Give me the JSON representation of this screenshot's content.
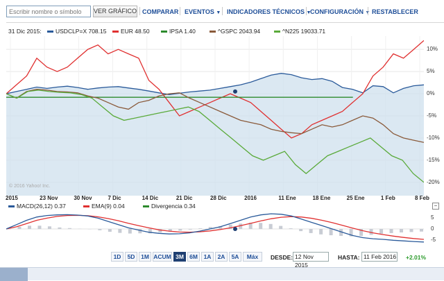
{
  "toolbar": {
    "search_placeholder": "Escribir nombre o símbolo",
    "ver_button": "VER GRÁFICO",
    "menu": [
      {
        "label": "COMPARAR",
        "caret": ""
      },
      {
        "label": "EVENTOS",
        "caret": "▼"
      },
      {
        "label": "INDICADORES TÉCNICOS",
        "caret": "▼"
      },
      {
        "label": "CONFIGURACIÓN",
        "caret": "▼"
      },
      {
        "label": "RESTABLECER",
        "caret": ""
      }
    ]
  },
  "legend": {
    "date": "31 Dic 2015:",
    "series": [
      {
        "label": "USDCLP=X 708.15",
        "color": "#2a5a9a"
      },
      {
        "label": "EUR 48.50",
        "color": "#e03030"
      },
      {
        "label": "IPSA 1.40",
        "color": "#2c8a2c"
      },
      {
        "label": "^GSPC 2043.94",
        "color": "#8a5a3a"
      },
      {
        "label": "^N225 19033.71",
        "color": "#5aaa3a"
      }
    ]
  },
  "chart_data": {
    "type": "line",
    "x_ticks": [
      "2015",
      "23 Nov",
      "30 Nov",
      "7 Dic",
      "14 Dic",
      "21 Dic",
      "28 Dic",
      "2016",
      "11 Ene",
      "18 Ene",
      "25 Ene",
      "1 Feb",
      "8 Feb"
    ],
    "y_ticks": [
      "10%",
      "5%",
      "0%",
      "-5%",
      "-10%",
      "-15%",
      "-20%"
    ],
    "ylim": [
      -23,
      13
    ],
    "series": [
      {
        "name": "USDCLP=X",
        "color": "#2a5a9a",
        "area": true,
        "values": [
          0,
          0.5,
          1,
          1.5,
          1.2,
          1.5,
          1.7,
          1.4,
          1.0,
          1.3,
          1.5,
          1.6,
          1.3,
          1.0,
          0.6,
          0.2,
          -0.2,
          0.1,
          0.4,
          0.6,
          0.8,
          1.2,
          1.6,
          2.0,
          2.6,
          3.4,
          4.2,
          4.6,
          4.3,
          3.6,
          3.2,
          3.4,
          2.8,
          1.4,
          1.0,
          0.2,
          1.8,
          1.6,
          0.2,
          1.2,
          1.8,
          2.0
        ]
      },
      {
        "name": "EUR",
        "color": "#e03030",
        "area": false,
        "values": [
          0,
          2,
          4,
          8,
          6,
          5,
          6,
          8,
          10,
          11,
          9,
          10,
          9,
          8,
          3,
          1,
          -2,
          -5,
          -4,
          -3,
          -2,
          -1,
          0,
          -1,
          -2,
          -4,
          -6,
          -8,
          -10,
          -9,
          -7,
          -6,
          -5,
          -4,
          -2,
          0,
          4,
          6,
          9,
          8,
          10,
          12
        ]
      },
      {
        "name": "IPSA",
        "color": "#2c8a2c",
        "area": false,
        "values": [
          -0.8,
          -0.8,
          -0.8,
          -0.8,
          -0.8,
          -0.8,
          -0.8,
          -0.8,
          -0.8,
          -0.8,
          -0.8,
          -0.8,
          -0.8,
          -0.8,
          -0.8,
          -0.8,
          -0.8,
          -0.8,
          -0.8,
          -0.8,
          -0.8,
          -0.8,
          -0.8,
          -0.8,
          -0.8,
          -0.8,
          -0.8,
          -0.8,
          -0.8,
          -0.8,
          -0.8,
          -0.8,
          -0.8,
          -0.8,
          -0.8,
          -0.8,
          -0.8
        ]
      },
      {
        "name": "^GSPC",
        "color": "#8a5a3a",
        "area": false,
        "values": [
          0,
          -1,
          0.5,
          1,
          0.8,
          0.5,
          0.4,
          0.2,
          -0.5,
          -1,
          -2,
          -3,
          -3.5,
          -2,
          -1.5,
          -0.5,
          0,
          0.2,
          -1,
          -2,
          -3,
          -4,
          -5,
          -6,
          -6.5,
          -7,
          -8,
          -8.5,
          -8.8,
          -9,
          -8,
          -7,
          -7.5,
          -7,
          -6,
          -5,
          -5.5,
          -7,
          -9,
          -10,
          -10.5,
          -11
        ]
      },
      {
        "name": "^N225",
        "color": "#5aaa3a",
        "area": false,
        "values": [
          0,
          -1,
          0.5,
          0.8,
          0.5,
          0.3,
          0.2,
          -0.2,
          -1,
          -3,
          -5,
          -6,
          -5.5,
          -5,
          -4.5,
          -4,
          -3.5,
          -3,
          -4,
          -6,
          -8,
          -10,
          -12,
          -14,
          -15,
          -14,
          -13,
          -16,
          -18,
          -16,
          -14,
          -13,
          -12,
          -11,
          -10,
          -12,
          -14,
          -15,
          -18,
          -20
        ]
      }
    ]
  },
  "watermark": "© 2016 Yahoo! Inc.",
  "macd": {
    "legend": [
      {
        "label": "MACD(26,12) 0.37",
        "color": "#2a5a9a"
      },
      {
        "label": "EMA(9) 0.04",
        "color": "#e03030"
      },
      {
        "label": "Divergencia 0.34",
        "color": "#2c8a2c"
      }
    ],
    "y_ticks": [
      "5",
      "0",
      "-5"
    ],
    "ylim": [
      -8,
      8
    ],
    "macd_values": [
      0,
      2,
      4,
      5.5,
      6.2,
      6.5,
      6.6,
      6.4,
      6,
      5,
      3.5,
      2,
      0.5,
      -0.5,
      -1.5,
      -2,
      -2.3,
      -2.2,
      -1.8,
      -1,
      0,
      1,
      2.5,
      4,
      5.5,
      6.5,
      7,
      6.8,
      6,
      4.5,
      3,
      1.5,
      0,
      -1.5,
      -3,
      -4,
      -4.5,
      -4.8,
      -5.2,
      -5.5,
      -5.8,
      -6
    ],
    "ema_values": [
      0,
      1,
      2.5,
      4,
      5,
      5.8,
      6.2,
      6.3,
      6.1,
      5.6,
      4.8,
      3.8,
      2.6,
      1.5,
      0.5,
      -0.4,
      -1,
      -1.4,
      -1.5,
      -1.3,
      -0.9,
      -0.3,
      0.5,
      1.5,
      2.6,
      3.7,
      4.7,
      5.4,
      5.7,
      5.5,
      4.9,
      4,
      2.9,
      1.7,
      0.4,
      -0.8,
      -1.8,
      -2.6,
      -3.3,
      -3.9,
      -4.4,
      -4.8
    ],
    "hist_values": [
      0,
      1,
      1.5,
      1.5,
      1.2,
      0.7,
      0.4,
      0.1,
      -0.1,
      -0.6,
      -1.3,
      -1.8,
      -2.1,
      -2,
      -2,
      -1.6,
      -1.3,
      -0.8,
      -0.3,
      0.3,
      0.9,
      1.3,
      2,
      2.5,
      2.9,
      2.8,
      2.3,
      1.4,
      0.3,
      -1,
      -1.9,
      -2.5,
      -2.9,
      -3.2,
      -3.4,
      -3.2,
      -2.7,
      -2.2,
      -1.9,
      -1.6,
      -1.4,
      -1.2
    ]
  },
  "range": {
    "buttons": [
      "1D",
      "5D",
      "1M",
      "ACUM",
      "3M",
      "6M",
      "1A",
      "2A",
      "5A",
      "Máx"
    ],
    "active": "3M",
    "desde_label": "DESDE:",
    "desde_value": "12 Nov 2015",
    "hasta_label": "HASTA:",
    "hasta_value": "11 Feb 2016",
    "change": "+2.01%"
  }
}
